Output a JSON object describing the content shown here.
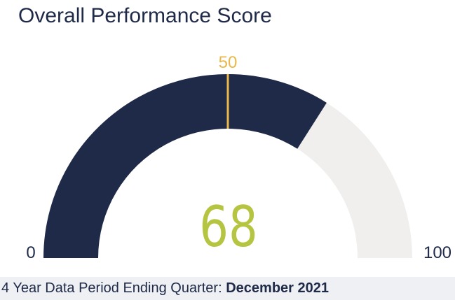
{
  "chart_data": {
    "type": "gauge",
    "title": "Overall Performance Score",
    "min": 0,
    "max": 100,
    "value": 68,
    "target": 50,
    "min_label": "0",
    "max_label": "100",
    "target_label": "50",
    "value_label": "68",
    "colors": {
      "fill": "#1f2a48",
      "track": "#f0efee",
      "target": "#e8b84a",
      "value_text": "#b5c542",
      "target_text": "#e8b84a",
      "label_text": "#1f2a48"
    }
  },
  "footer": {
    "prefix": "4 Year Data Period Ending Quarter: ",
    "period": "December 2021"
  }
}
